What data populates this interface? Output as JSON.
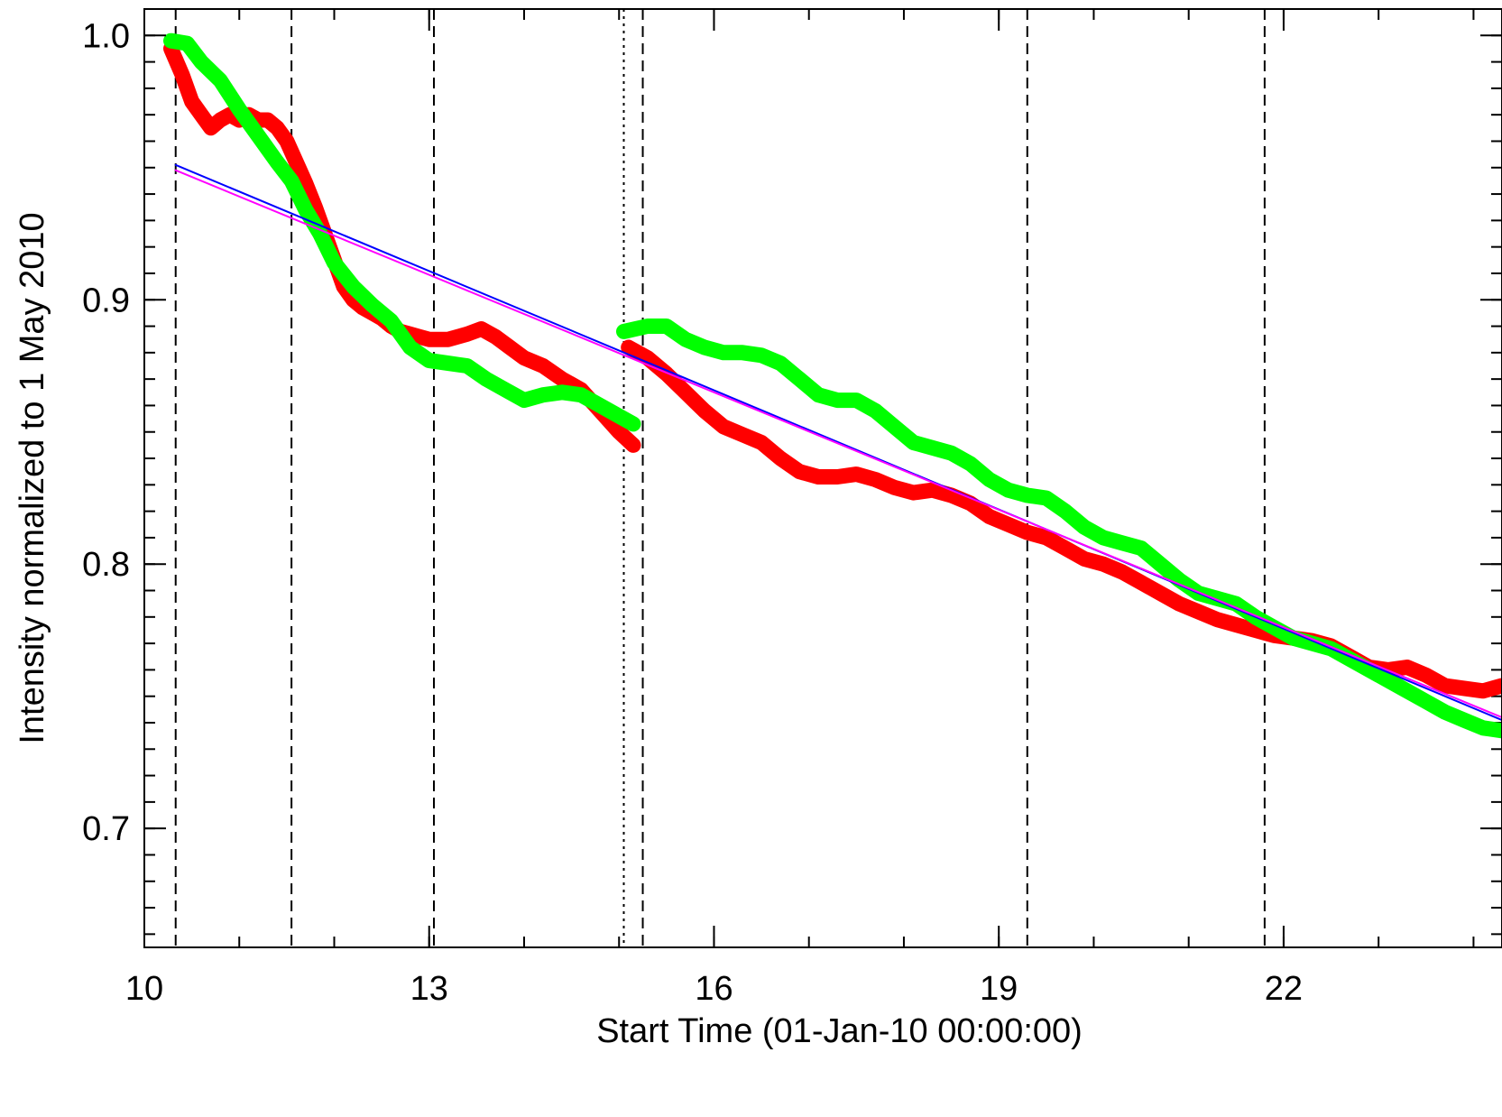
{
  "chart_data": {
    "type": "line",
    "title": "",
    "xlabel": "Start Time (01-Jan-10 00:00:00)",
    "ylabel": "Intensity normalized to 1 May 2010",
    "xlim": [
      10,
      24.3
    ],
    "ylim": [
      0.655,
      1.01
    ],
    "x_ticks": [
      10,
      13,
      16,
      19,
      22
    ],
    "x_tick_labels": [
      "10",
      "13",
      "16",
      "19",
      "22"
    ],
    "y_ticks": [
      0.7,
      0.8,
      0.9,
      1.0
    ],
    "y_tick_labels": [
      "0.7",
      "0.8",
      "0.9",
      "1.0"
    ],
    "y_minor_step": 0.01,
    "x_minor_step": 1,
    "grid": false,
    "legend": "none",
    "vlines_dashed": [
      10.33,
      11.55,
      13.05,
      15.25,
      19.3,
      21.8
    ],
    "vlines_dotted": [
      15.05
    ],
    "series": [
      {
        "color": "#ff0000",
        "style": "thick",
        "segments": [
          [
            [
              10.28,
              0.995
            ],
            [
              10.4,
              0.985
            ],
            [
              10.5,
              0.975
            ],
            [
              10.6,
              0.97
            ],
            [
              10.7,
              0.965
            ],
            [
              10.8,
              0.968
            ],
            [
              10.9,
              0.97
            ],
            [
              11.0,
              0.968
            ],
            [
              11.1,
              0.97
            ],
            [
              11.2,
              0.968
            ],
            [
              11.3,
              0.968
            ],
            [
              11.4,
              0.965
            ],
            [
              11.5,
              0.96
            ],
            [
              11.6,
              0.952
            ],
            [
              11.7,
              0.944
            ],
            [
              11.8,
              0.935
            ],
            [
              11.9,
              0.925
            ],
            [
              12.0,
              0.915
            ],
            [
              12.1,
              0.905
            ],
            [
              12.2,
              0.9
            ],
            [
              12.3,
              0.897
            ],
            [
              12.4,
              0.895
            ],
            [
              12.5,
              0.893
            ],
            [
              12.6,
              0.89
            ],
            [
              12.7,
              0.888
            ],
            [
              12.8,
              0.887
            ],
            [
              12.9,
              0.886
            ],
            [
              13.0,
              0.885
            ],
            [
              13.2,
              0.885
            ],
            [
              13.4,
              0.887
            ],
            [
              13.55,
              0.889
            ],
            [
              13.7,
              0.886
            ],
            [
              13.85,
              0.882
            ],
            [
              14.0,
              0.878
            ],
            [
              14.2,
              0.875
            ],
            [
              14.4,
              0.87
            ],
            [
              14.6,
              0.866
            ],
            [
              14.8,
              0.858
            ],
            [
              15.0,
              0.85
            ],
            [
              15.15,
              0.845
            ]
          ],
          [
            [
              15.1,
              0.882
            ],
            [
              15.3,
              0.878
            ],
            [
              15.5,
              0.872
            ],
            [
              15.7,
              0.865
            ],
            [
              15.9,
              0.858
            ],
            [
              16.1,
              0.852
            ],
            [
              16.3,
              0.849
            ],
            [
              16.5,
              0.846
            ],
            [
              16.7,
              0.84
            ],
            [
              16.9,
              0.835
            ],
            [
              17.1,
              0.833
            ],
            [
              17.3,
              0.833
            ],
            [
              17.5,
              0.834
            ],
            [
              17.7,
              0.832
            ],
            [
              17.9,
              0.829
            ],
            [
              18.1,
              0.827
            ],
            [
              18.3,
              0.828
            ],
            [
              18.5,
              0.826
            ],
            [
              18.7,
              0.823
            ],
            [
              18.9,
              0.818
            ],
            [
              19.1,
              0.815
            ],
            [
              19.3,
              0.812
            ],
            [
              19.5,
              0.81
            ],
            [
              19.7,
              0.806
            ],
            [
              19.9,
              0.802
            ],
            [
              20.1,
              0.8
            ],
            [
              20.3,
              0.797
            ],
            [
              20.5,
              0.793
            ],
            [
              20.7,
              0.789
            ],
            [
              20.9,
              0.785
            ],
            [
              21.1,
              0.782
            ],
            [
              21.3,
              0.779
            ],
            [
              21.5,
              0.777
            ],
            [
              21.7,
              0.775
            ],
            [
              21.9,
              0.773
            ],
            [
              22.1,
              0.772
            ],
            [
              22.3,
              0.771
            ],
            [
              22.5,
              0.769
            ],
            [
              22.7,
              0.765
            ],
            [
              22.9,
              0.761
            ],
            [
              23.1,
              0.76
            ],
            [
              23.3,
              0.761
            ],
            [
              23.5,
              0.758
            ],
            [
              23.7,
              0.754
            ],
            [
              23.9,
              0.753
            ],
            [
              24.1,
              0.752
            ],
            [
              24.3,
              0.754
            ]
          ]
        ]
      },
      {
        "color": "#00ff00",
        "style": "thick",
        "segments": [
          [
            [
              10.28,
              0.998
            ],
            [
              10.45,
              0.997
            ],
            [
              10.6,
              0.99
            ],
            [
              10.8,
              0.983
            ],
            [
              11.0,
              0.972
            ],
            [
              11.2,
              0.962
            ],
            [
              11.4,
              0.952
            ],
            [
              11.55,
              0.945
            ],
            [
              11.7,
              0.934
            ],
            [
              11.85,
              0.925
            ],
            [
              12.0,
              0.914
            ],
            [
              12.2,
              0.905
            ],
            [
              12.4,
              0.898
            ],
            [
              12.6,
              0.892
            ],
            [
              12.8,
              0.882
            ],
            [
              13.0,
              0.877
            ],
            [
              13.2,
              0.876
            ],
            [
              13.4,
              0.875
            ],
            [
              13.6,
              0.87
            ],
            [
              13.8,
              0.866
            ],
            [
              14.0,
              0.862
            ],
            [
              14.2,
              0.864
            ],
            [
              14.4,
              0.865
            ],
            [
              14.6,
              0.864
            ],
            [
              14.8,
              0.86
            ],
            [
              15.0,
              0.856
            ],
            [
              15.15,
              0.853
            ]
          ],
          [
            [
              15.05,
              0.888
            ],
            [
              15.3,
              0.89
            ],
            [
              15.5,
              0.89
            ],
            [
              15.7,
              0.885
            ],
            [
              15.9,
              0.882
            ],
            [
              16.1,
              0.88
            ],
            [
              16.3,
              0.88
            ],
            [
              16.5,
              0.879
            ],
            [
              16.7,
              0.876
            ],
            [
              16.9,
              0.87
            ],
            [
              17.1,
              0.864
            ],
            [
              17.3,
              0.862
            ],
            [
              17.5,
              0.862
            ],
            [
              17.7,
              0.858
            ],
            [
              17.9,
              0.852
            ],
            [
              18.1,
              0.846
            ],
            [
              18.3,
              0.844
            ],
            [
              18.5,
              0.842
            ],
            [
              18.7,
              0.838
            ],
            [
              18.9,
              0.832
            ],
            [
              19.1,
              0.828
            ],
            [
              19.3,
              0.826
            ],
            [
              19.5,
              0.825
            ],
            [
              19.7,
              0.82
            ],
            [
              19.9,
              0.814
            ],
            [
              20.1,
              0.81
            ],
            [
              20.3,
              0.808
            ],
            [
              20.5,
              0.806
            ],
            [
              20.7,
              0.8
            ],
            [
              20.9,
              0.794
            ],
            [
              21.1,
              0.789
            ],
            [
              21.3,
              0.787
            ],
            [
              21.5,
              0.785
            ],
            [
              21.7,
              0.78
            ],
            [
              21.9,
              0.776
            ],
            [
              22.1,
              0.772
            ],
            [
              22.3,
              0.77
            ],
            [
              22.5,
              0.768
            ],
            [
              22.7,
              0.764
            ],
            [
              22.9,
              0.76
            ],
            [
              23.1,
              0.756
            ],
            [
              23.3,
              0.752
            ],
            [
              23.5,
              0.748
            ],
            [
              23.7,
              0.744
            ],
            [
              23.9,
              0.741
            ],
            [
              24.1,
              0.738
            ],
            [
              24.3,
              0.737
            ]
          ]
        ]
      },
      {
        "color": "#0000ff",
        "style": "thin",
        "segments": [
          [
            [
              10.33,
              0.951
            ],
            [
              24.3,
              0.741
            ]
          ]
        ]
      },
      {
        "color": "#ff00ff",
        "style": "thin",
        "segments": [
          [
            [
              10.33,
              0.949
            ],
            [
              24.3,
              0.742
            ]
          ]
        ]
      }
    ]
  }
}
